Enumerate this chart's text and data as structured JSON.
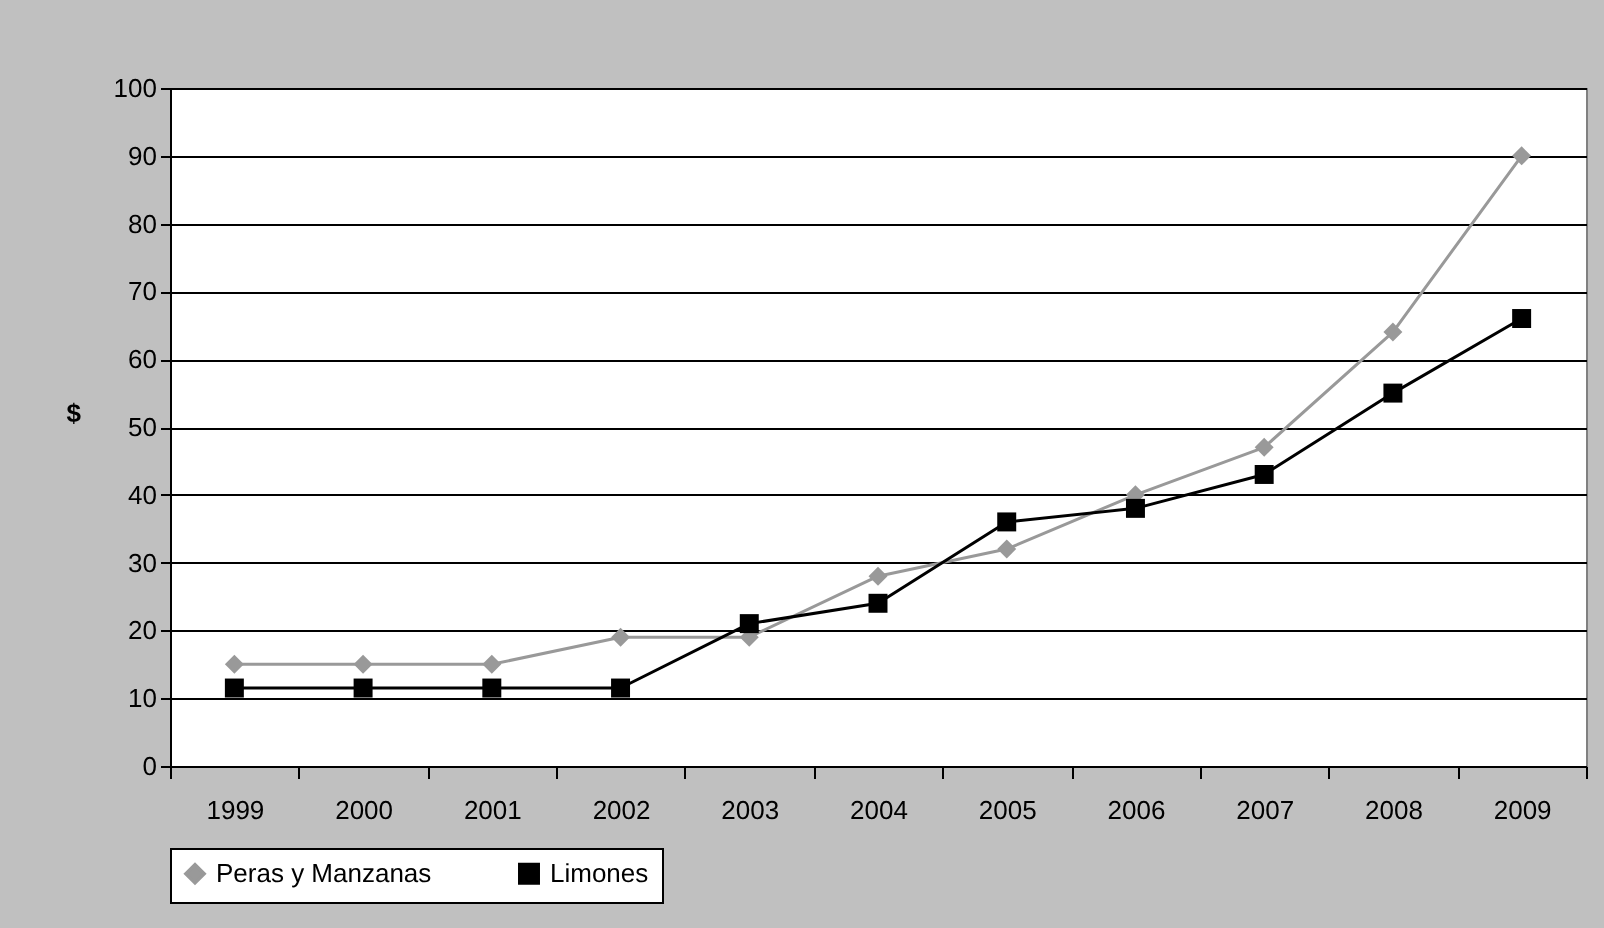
{
  "chart_data": {
    "type": "line",
    "ylabel": "$",
    "categories": [
      "1999",
      "2000",
      "2001",
      "2002",
      "2003",
      "2004",
      "2005",
      "2006",
      "2007",
      "2008",
      "2009"
    ],
    "series": [
      {
        "name": "Peras y Manzanas",
        "color": "#999999",
        "marker": "diamond",
        "values": [
          15,
          15,
          15,
          19,
          19,
          28,
          32,
          40,
          47,
          64,
          90
        ]
      },
      {
        "name": "Limones",
        "color": "#000000",
        "marker": "square",
        "values": [
          11.5,
          11.5,
          11.5,
          11.5,
          21,
          24,
          36,
          38,
          43,
          55,
          66
        ]
      }
    ],
    "ylim": [
      0,
      100
    ],
    "yticks": [
      0,
      10,
      20,
      30,
      40,
      50,
      60,
      70,
      80,
      90,
      100
    ],
    "grid": "y",
    "legend": "bottom",
    "line_style": "solid"
  }
}
